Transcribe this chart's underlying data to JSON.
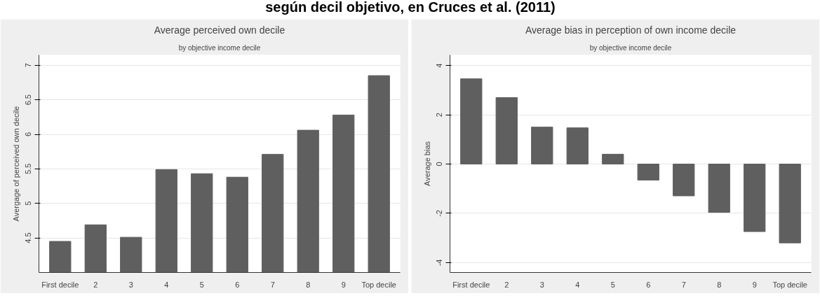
{
  "chart_data": [
    {
      "type": "bar",
      "title": "Average perceived own decile",
      "subtitle": "by objective income decile",
      "ylabel": "Avergage of perceived own decile",
      "annotations": [
        "según decil objetivo, en Cruces et al. (2011)"
      ],
      "categories": [
        "First decile",
        "2",
        "3",
        "4",
        "5",
        "6",
        "7",
        "8",
        "9",
        "Top decile"
      ],
      "values": [
        4.45,
        4.69,
        4.51,
        5.49,
        5.43,
        5.38,
        5.71,
        6.06,
        6.28,
        6.85
      ],
      "color": "#5f5f5f",
      "ylim": [
        4.0,
        7.15
      ],
      "yticks": [
        4.5,
        5,
        5.5,
        6,
        6.5,
        7
      ],
      "grid": "y"
    },
    {
      "type": "bar",
      "title": "Average bias in perception of own income decile",
      "subtitle": "by objective income decile",
      "ylabel": "Average bias",
      "categories": [
        "First decile",
        "2",
        "3",
        "4",
        "5",
        "6",
        "7",
        "8",
        "9",
        "Top decile"
      ],
      "values": [
        3.46,
        2.7,
        1.5,
        1.47,
        0.4,
        -0.65,
        -1.29,
        -1.96,
        -2.74,
        -3.2
      ],
      "color": "#5f5f5f",
      "ylim": [
        -4.4,
        4.43
      ],
      "yticks": [
        -4,
        -2,
        0,
        2,
        4
      ],
      "grid": "y"
    }
  ]
}
